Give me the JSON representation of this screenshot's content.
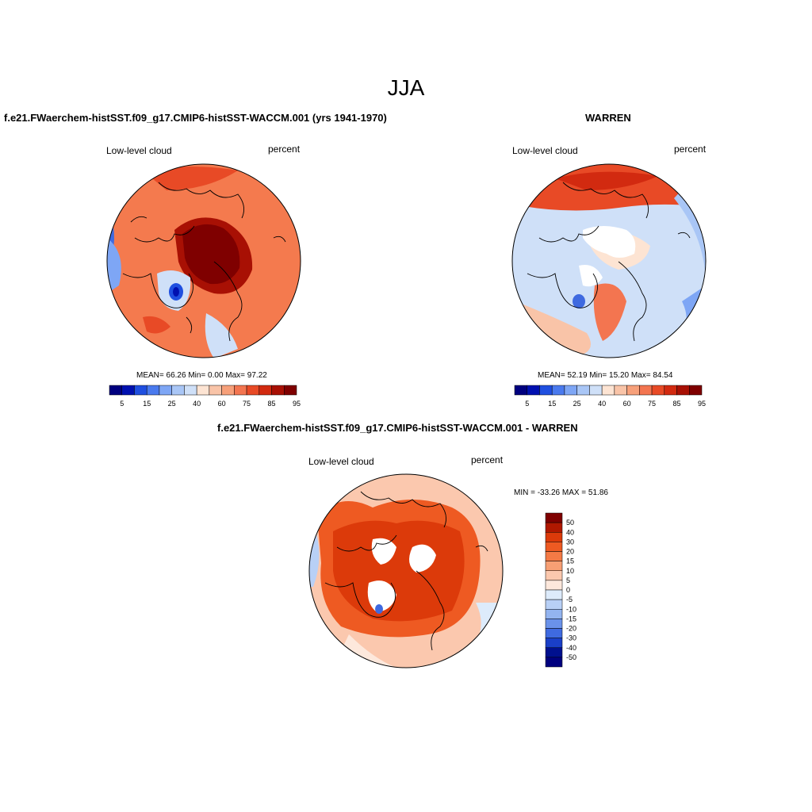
{
  "title": "JJA",
  "panels": [
    {
      "id": "model",
      "title": "f.e21.FWaerchem-histSST.f09_g17.CMIP6-histSST-WACCM.001 (yrs 1941-1970)",
      "variable": "Low-level cloud",
      "units": "percent",
      "stats": "MEAN=  66.26  Min=   0.00  Max=  97.22",
      "colorbar_labels": [
        "5",
        "15",
        "25",
        "40",
        "60",
        "75",
        "85",
        "95"
      ]
    },
    {
      "id": "obs",
      "title": "WARREN",
      "variable": "Low-level cloud",
      "units": "percent",
      "stats": "MEAN=  52.19  Min=  15.20  Max=  84.54",
      "colorbar_labels": [
        "5",
        "15",
        "25",
        "40",
        "60",
        "75",
        "85",
        "95"
      ]
    },
    {
      "id": "diff",
      "title": "f.e21.FWaerchem-histSST.f09_g17.CMIP6-histSST-WACCM.001 - WARREN",
      "variable": "Low-level cloud",
      "units": "percent",
      "stats": "MIN = -33.26 MAX =  51.86",
      "colorbar_labels": [
        "50",
        "40",
        "30",
        "20",
        "15",
        "10",
        "5",
        "0",
        "-5",
        "-10",
        "-15",
        "-20",
        "-30",
        "-40",
        "-50"
      ]
    }
  ],
  "colors": {
    "seq_palette": [
      "#00007f",
      "#0010b0",
      "#1f4fe0",
      "#4a7aee",
      "#7ea6f5",
      "#a9c6f6",
      "#cfe0f8",
      "#fde4d3",
      "#f9c4a8",
      "#f7a07a",
      "#f37550",
      "#e84a26",
      "#d22a10",
      "#a81004",
      "#7f0000"
    ],
    "diff_palette": [
      "#7f0000",
      "#b01800",
      "#dc3a0a",
      "#ee5a22",
      "#f47a45",
      "#f79f74",
      "#fbc8ae",
      "#fde8dc",
      "#ddebfb",
      "#b8d0f6",
      "#93b4f0",
      "#6a92ea",
      "#3f6ae0",
      "#1a3fc8",
      "#00108f",
      "#00007f"
    ]
  }
}
